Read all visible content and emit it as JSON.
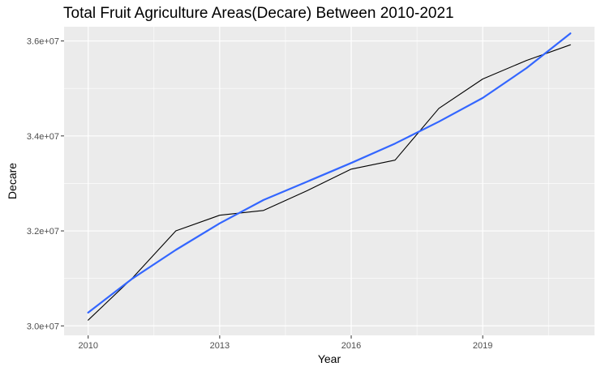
{
  "chart_data": {
    "type": "line",
    "title": "Total Fruit Agriculture Areas(Decare) Between 2010-2021",
    "xlabel": "Year",
    "ylabel": "Decare",
    "xlim": [
      2009.45,
      2021.55
    ],
    "ylim": [
      29800000,
      36300000
    ],
    "x_ticks": [
      2010,
      2013,
      2016,
      2019
    ],
    "x_tick_labels": [
      "2010",
      "2013",
      "2016",
      "2019"
    ],
    "y_ticks": [
      30000000,
      32000000,
      34000000,
      36000000
    ],
    "y_tick_labels": [
      "3.0e+07",
      "3.2e+07",
      "3.4e+07",
      "3.6e+07"
    ],
    "grid": true,
    "background": "#ebebeb",
    "series": [
      {
        "color": "#000000",
        "x": [
          2010,
          2011,
          2012,
          2013,
          2014,
          2015,
          2016,
          2017,
          2018,
          2019,
          2020,
          2021
        ],
        "y": [
          30120000,
          31000000,
          32000000,
          32330000,
          32430000,
          32850000,
          33300000,
          33490000,
          34580000,
          35200000,
          35590000,
          35920000
        ]
      },
      {
        "color": "#3366ff",
        "x": [
          2010,
          2011,
          2012,
          2013,
          2014,
          2015,
          2016,
          2017,
          2018,
          2019,
          2020,
          2021
        ],
        "y": [
          30280000,
          30990000,
          31600000,
          32160000,
          32650000,
          33040000,
          33430000,
          33840000,
          34300000,
          34800000,
          35430000,
          36160000
        ]
      }
    ]
  }
}
